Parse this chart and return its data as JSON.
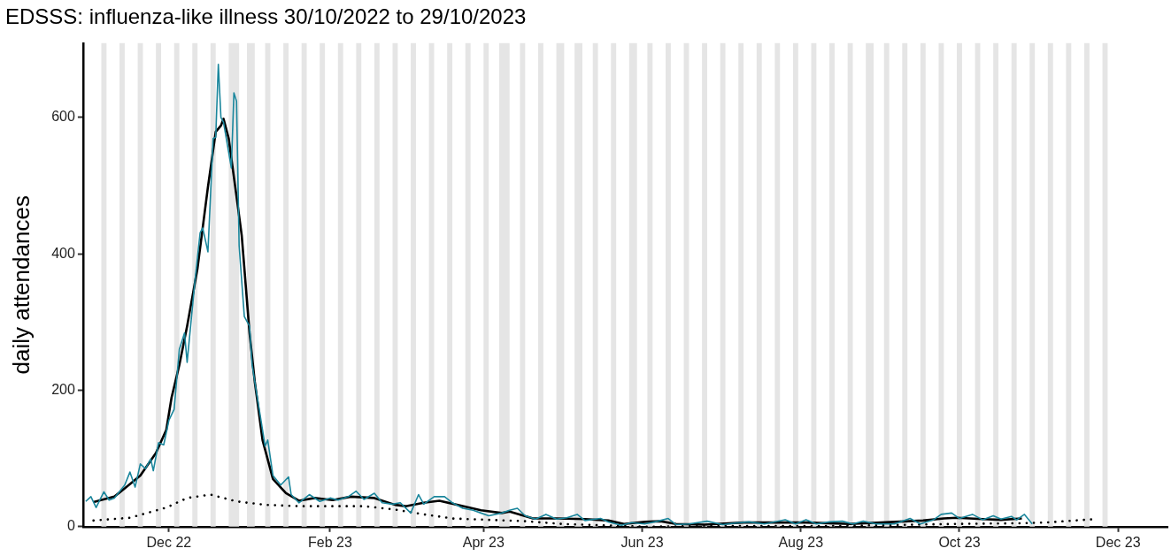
{
  "chart_data": {
    "type": "line",
    "title": "EDSSS: influenza-like illness 30/10/2022 to 29/10/2023",
    "ylabel": "daily attendances",
    "xlim": [
      "2022-10-29",
      "2023-12-20"
    ],
    "xticks": [
      {
        "value": "2022-12-01",
        "label": "Dec 22"
      },
      {
        "value": "2023-02-01",
        "label": "Feb 23"
      },
      {
        "value": "2023-04-01",
        "label": "Apr 23"
      },
      {
        "value": "2023-06-01",
        "label": "Jun 23"
      },
      {
        "value": "2023-08-01",
        "label": "Aug 23"
      },
      {
        "value": "2023-10-01",
        "label": "Oct 23"
      },
      {
        "value": "2023-12-01",
        "label": "Dec 23"
      }
    ],
    "ylim": [
      0,
      709
    ],
    "yticks": [
      0,
      200,
      400,
      600
    ],
    "grid": false,
    "legend": false,
    "series": [
      {
        "color": "#1a869c",
        "x": [
          "2022-10-30",
          "2022-11-01",
          "2022-11-03",
          "2022-11-06",
          "2022-11-08",
          "2022-11-10",
          "2022-11-14",
          "2022-11-16",
          "2022-11-18",
          "2022-11-20",
          "2022-11-22",
          "2022-11-24",
          "2022-11-25",
          "2022-11-27",
          "2022-11-29",
          "2022-12-01",
          "2022-12-03",
          "2022-12-05",
          "2022-12-07",
          "2022-12-08",
          "2022-12-11",
          "2022-12-13",
          "2022-12-14",
          "2022-12-16",
          "2022-12-18",
          "2022-12-19",
          "2022-12-20",
          "2022-12-21",
          "2022-12-22",
          "2022-12-25",
          "2022-12-26",
          "2022-12-27",
          "2022-12-28",
          "2022-12-30",
          "2023-01-01",
          "2023-01-02",
          "2023-01-04",
          "2023-01-07",
          "2023-01-08",
          "2023-01-10",
          "2023-01-13",
          "2023-01-16",
          "2023-01-17",
          "2023-01-20",
          "2023-01-24",
          "2023-01-28",
          "2023-02-01",
          "2023-02-04",
          "2023-02-08",
          "2023-02-11",
          "2023-02-14",
          "2023-02-18",
          "2023-02-21",
          "2023-02-25",
          "2023-02-28",
          "2023-03-04",
          "2023-03-07",
          "2023-03-09",
          "2023-03-13",
          "2023-03-17",
          "2023-03-20",
          "2023-03-24",
          "2023-03-28",
          "2023-03-31",
          "2023-04-03",
          "2023-04-08",
          "2023-04-11",
          "2023-04-14",
          "2023-04-17",
          "2023-04-21",
          "2023-04-25",
          "2023-04-29",
          "2023-05-03",
          "2023-05-07",
          "2023-05-10",
          "2023-05-16",
          "2023-05-19",
          "2023-05-24",
          "2023-05-28",
          "2023-06-02",
          "2023-06-07",
          "2023-06-11",
          "2023-06-14",
          "2023-06-19",
          "2023-06-26",
          "2023-07-02",
          "2023-07-06",
          "2023-07-12",
          "2023-07-18",
          "2023-07-26",
          "2023-07-30",
          "2023-08-03",
          "2023-08-07",
          "2023-08-12",
          "2023-08-17",
          "2023-08-21",
          "2023-08-25",
          "2023-08-30",
          "2023-09-06",
          "2023-09-12",
          "2023-09-16",
          "2023-09-21",
          "2023-09-24",
          "2023-09-28",
          "2023-10-01",
          "2023-10-06",
          "2023-10-10",
          "2023-10-14",
          "2023-10-17",
          "2023-10-21",
          "2023-10-23",
          "2023-10-26",
          "2023-10-29"
        ],
        "values": [
          37,
          44,
          28,
          51,
          39,
          42,
          61,
          80,
          58,
          92,
          85,
          99,
          82,
          123,
          120,
          156,
          172,
          260,
          284,
          241,
          360,
          431,
          438,
          403,
          569,
          571,
          678,
          600,
          593,
          526,
          636,
          624,
          412,
          308,
          294,
          237,
          189,
          118,
          127,
          75,
          61,
          73,
          47,
          35,
          47,
          37,
          42,
          39,
          44,
          52,
          40,
          49,
          35,
          33,
          35,
          20,
          47,
          33,
          44,
          44,
          35,
          27,
          24,
          20,
          16,
          20,
          24,
          27,
          16,
          11,
          18,
          11,
          13,
          18,
          9,
          12,
          7,
          2,
          6,
          4,
          8,
          12,
          3,
          4,
          8,
          3,
          5,
          7,
          4,
          10,
          4,
          10,
          4,
          7,
          8,
          4,
          8,
          4,
          4,
          12,
          4,
          10,
          18,
          20,
          12,
          18,
          10,
          16,
          11,
          15,
          10,
          18,
          4
        ]
      },
      {
        "color": "#000000",
        "x": [
          "2022-11-02",
          "2022-11-10",
          "2022-11-14",
          "2022-11-20",
          "2022-11-26",
          "2022-11-30",
          "2022-12-02",
          "2022-12-05",
          "2022-12-08",
          "2022-12-12",
          "2022-12-16",
          "2022-12-19",
          "2022-12-21",
          "2022-12-22",
          "2022-12-24",
          "2022-12-27",
          "2022-12-29",
          "2023-01-01",
          "2023-01-03",
          "2023-01-06",
          "2023-01-10",
          "2023-01-15",
          "2023-01-20",
          "2023-01-26",
          "2023-02-02",
          "2023-02-09",
          "2023-02-18",
          "2023-02-26",
          "2023-03-02",
          "2023-03-09",
          "2023-03-15",
          "2023-03-31",
          "2023-04-08",
          "2023-04-11",
          "2023-04-20",
          "2023-04-29",
          "2023-05-10",
          "2023-05-19",
          "2023-05-25",
          "2023-06-02",
          "2023-06-08",
          "2023-06-14",
          "2023-06-25",
          "2023-07-10",
          "2023-07-23",
          "2023-08-03",
          "2023-08-20",
          "2023-09-06",
          "2023-09-17",
          "2023-09-25",
          "2023-09-30",
          "2023-10-10",
          "2023-10-17",
          "2023-10-25"
        ],
        "values": [
          36,
          44,
          56,
          75,
          108,
          142,
          189,
          237,
          294,
          379,
          498,
          579,
          588,
          598,
          569,
          484,
          427,
          284,
          213,
          127,
          70,
          49,
          38,
          42,
          39,
          44,
          42,
          32,
          30,
          35,
          38,
          24,
          20,
          22,
          12,
          12,
          11,
          9,
          4,
          7,
          8,
          4,
          3,
          6,
          6,
          6,
          4,
          7,
          9,
          12,
          13,
          11,
          10,
          12
        ]
      },
      {
        "color": "#000000",
        "line_style": "dotted",
        "x": [
          "2022-11-02",
          "2022-11-16",
          "2022-11-30",
          "2022-12-08",
          "2022-12-17",
          "2022-12-27",
          "2023-01-07",
          "2023-01-20",
          "2023-02-02",
          "2023-02-14",
          "2023-02-26",
          "2023-03-09",
          "2023-03-20",
          "2023-04-03",
          "2023-04-17",
          "2023-05-01",
          "2023-05-16",
          "2023-06-02",
          "2023-07-01",
          "2023-08-15",
          "2023-09-30",
          "2023-10-25",
          "2023-11-03",
          "2023-11-18",
          "2023-11-22"
        ],
        "values": [
          9,
          13,
          28,
          42,
          47,
          37,
          32,
          30,
          30,
          30,
          25,
          18,
          12,
          10,
          8,
          4,
          2,
          0,
          1,
          1,
          4,
          5,
          6,
          10,
          11
        ]
      }
    ],
    "bands": [
      {
        "axis": "x",
        "from": "2022-11-05",
        "to": "2022-11-07",
        "color": "#e5e5e5"
      },
      {
        "axis": "x",
        "from": "2022-11-12",
        "to": "2022-11-14",
        "color": "#e5e5e5"
      },
      {
        "axis": "x",
        "from": "2022-11-19",
        "to": "2022-11-21",
        "color": "#e5e5e5"
      },
      {
        "axis": "x",
        "from": "2022-11-26",
        "to": "2022-11-28",
        "color": "#e5e5e5"
      },
      {
        "axis": "x",
        "from": "2022-12-03",
        "to": "2022-12-05",
        "color": "#e5e5e5"
      },
      {
        "axis": "x",
        "from": "2022-12-10",
        "to": "2022-12-12",
        "color": "#e5e5e5"
      },
      {
        "axis": "x",
        "from": "2022-12-17",
        "to": "2022-12-19",
        "color": "#e5e5e5"
      },
      {
        "axis": "x",
        "from": "2022-12-24",
        "to": "2022-12-28",
        "color": "#e5e5e5"
      },
      {
        "axis": "x",
        "from": "2022-12-31",
        "to": "2023-01-03",
        "color": "#e5e5e5"
      },
      {
        "axis": "x",
        "from": "2023-01-07",
        "to": "2023-01-09",
        "color": "#e5e5e5"
      },
      {
        "axis": "x",
        "from": "2023-01-14",
        "to": "2023-01-16",
        "color": "#e5e5e5"
      },
      {
        "axis": "x",
        "from": "2023-01-21",
        "to": "2023-01-23",
        "color": "#e5e5e5"
      },
      {
        "axis": "x",
        "from": "2023-01-28",
        "to": "2023-01-30",
        "color": "#e5e5e5"
      },
      {
        "axis": "x",
        "from": "2023-02-04",
        "to": "2023-02-06",
        "color": "#e5e5e5"
      },
      {
        "axis": "x",
        "from": "2023-02-11",
        "to": "2023-02-13",
        "color": "#e5e5e5"
      },
      {
        "axis": "x",
        "from": "2023-02-18",
        "to": "2023-02-20",
        "color": "#e5e5e5"
      },
      {
        "axis": "x",
        "from": "2023-02-25",
        "to": "2023-02-27",
        "color": "#e5e5e5"
      },
      {
        "axis": "x",
        "from": "2023-03-04",
        "to": "2023-03-06",
        "color": "#e5e5e5"
      },
      {
        "axis": "x",
        "from": "2023-03-11",
        "to": "2023-03-13",
        "color": "#e5e5e5"
      },
      {
        "axis": "x",
        "from": "2023-03-18",
        "to": "2023-03-20",
        "color": "#e5e5e5"
      },
      {
        "axis": "x",
        "from": "2023-03-25",
        "to": "2023-03-27",
        "color": "#e5e5e5"
      },
      {
        "axis": "x",
        "from": "2023-04-01",
        "to": "2023-04-03",
        "color": "#e5e5e5"
      },
      {
        "axis": "x",
        "from": "2023-04-07",
        "to": "2023-04-11",
        "color": "#e5e5e5"
      },
      {
        "axis": "x",
        "from": "2023-04-15",
        "to": "2023-04-17",
        "color": "#e5e5e5"
      },
      {
        "axis": "x",
        "from": "2023-04-22",
        "to": "2023-04-24",
        "color": "#e5e5e5"
      },
      {
        "axis": "x",
        "from": "2023-04-29",
        "to": "2023-05-02",
        "color": "#e5e5e5"
      },
      {
        "axis": "x",
        "from": "2023-05-06",
        "to": "2023-05-09",
        "color": "#e5e5e5"
      },
      {
        "axis": "x",
        "from": "2023-05-13",
        "to": "2023-05-15",
        "color": "#e5e5e5"
      },
      {
        "axis": "x",
        "from": "2023-05-20",
        "to": "2023-05-22",
        "color": "#e5e5e5"
      },
      {
        "axis": "x",
        "from": "2023-05-27",
        "to": "2023-05-30",
        "color": "#e5e5e5"
      },
      {
        "axis": "x",
        "from": "2023-06-03",
        "to": "2023-06-05",
        "color": "#e5e5e5"
      },
      {
        "axis": "x",
        "from": "2023-06-10",
        "to": "2023-06-12",
        "color": "#e5e5e5"
      },
      {
        "axis": "x",
        "from": "2023-06-17",
        "to": "2023-06-19",
        "color": "#e5e5e5"
      },
      {
        "axis": "x",
        "from": "2023-06-24",
        "to": "2023-06-26",
        "color": "#e5e5e5"
      },
      {
        "axis": "x",
        "from": "2023-07-01",
        "to": "2023-07-03",
        "color": "#e5e5e5"
      },
      {
        "axis": "x",
        "from": "2023-07-08",
        "to": "2023-07-10",
        "color": "#e5e5e5"
      },
      {
        "axis": "x",
        "from": "2023-07-15",
        "to": "2023-07-17",
        "color": "#e5e5e5"
      },
      {
        "axis": "x",
        "from": "2023-07-22",
        "to": "2023-07-24",
        "color": "#e5e5e5"
      },
      {
        "axis": "x",
        "from": "2023-07-29",
        "to": "2023-07-31",
        "color": "#e5e5e5"
      },
      {
        "axis": "x",
        "from": "2023-08-05",
        "to": "2023-08-07",
        "color": "#e5e5e5"
      },
      {
        "axis": "x",
        "from": "2023-08-12",
        "to": "2023-08-14",
        "color": "#e5e5e5"
      },
      {
        "axis": "x",
        "from": "2023-08-19",
        "to": "2023-08-21",
        "color": "#e5e5e5"
      },
      {
        "axis": "x",
        "from": "2023-08-26",
        "to": "2023-08-29",
        "color": "#e5e5e5"
      },
      {
        "axis": "x",
        "from": "2023-09-02",
        "to": "2023-09-04",
        "color": "#e5e5e5"
      },
      {
        "axis": "x",
        "from": "2023-09-09",
        "to": "2023-09-11",
        "color": "#e5e5e5"
      },
      {
        "axis": "x",
        "from": "2023-09-16",
        "to": "2023-09-18",
        "color": "#e5e5e5"
      },
      {
        "axis": "x",
        "from": "2023-09-23",
        "to": "2023-09-25",
        "color": "#e5e5e5"
      },
      {
        "axis": "x",
        "from": "2023-09-30",
        "to": "2023-10-02",
        "color": "#e5e5e5"
      },
      {
        "axis": "x",
        "from": "2023-10-07",
        "to": "2023-10-09",
        "color": "#e5e5e5"
      },
      {
        "axis": "x",
        "from": "2023-10-14",
        "to": "2023-10-16",
        "color": "#e5e5e5"
      },
      {
        "axis": "x",
        "from": "2023-10-21",
        "to": "2023-10-23",
        "color": "#e5e5e5"
      },
      {
        "axis": "x",
        "from": "2023-10-28",
        "to": "2023-10-30",
        "color": "#e5e5e5"
      },
      {
        "axis": "x",
        "from": "2023-11-04",
        "to": "2023-11-06",
        "color": "#e5e5e5"
      },
      {
        "axis": "x",
        "from": "2023-11-11",
        "to": "2023-11-13",
        "color": "#e5e5e5"
      },
      {
        "axis": "x",
        "from": "2023-11-18",
        "to": "2023-11-20",
        "color": "#e5e5e5"
      },
      {
        "axis": "x",
        "from": "2023-11-25",
        "to": "2023-11-27",
        "color": "#e5e5e5"
      }
    ]
  }
}
